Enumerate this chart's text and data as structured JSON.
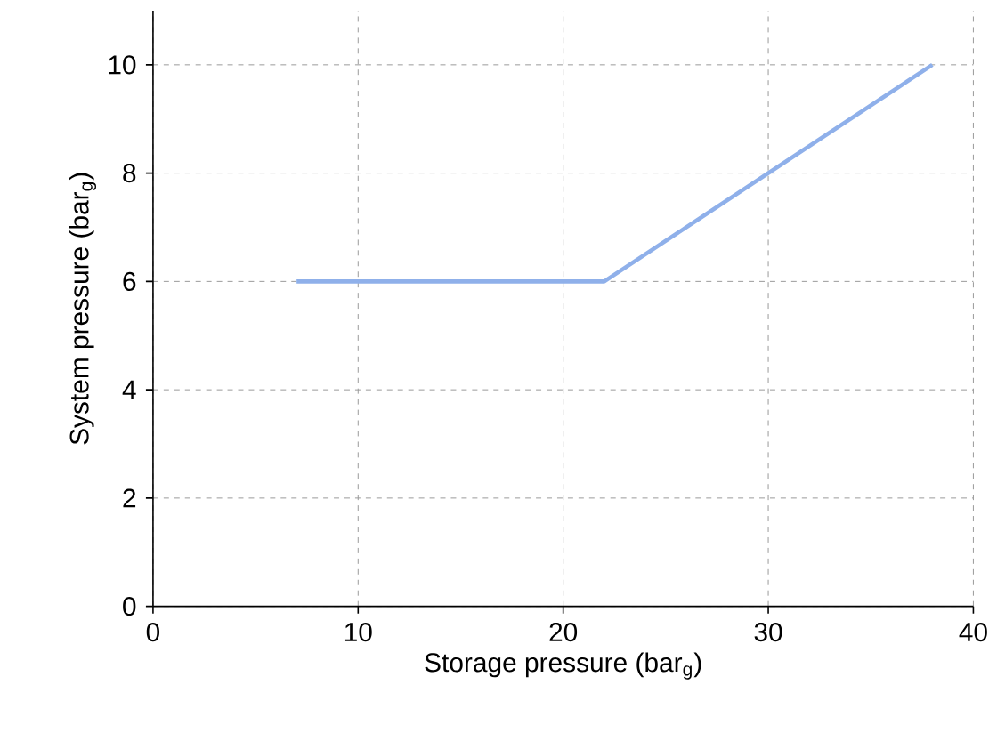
{
  "chart_data": {
    "type": "line",
    "xlabel": "Storage pressure (bar$_{g}$)",
    "ylabel": "System pressure (bar$_{g}$)",
    "x": [
      7,
      22,
      38
    ],
    "series": [
      {
        "color": "#8fb0ea",
        "values": [
          6,
          6,
          10
        ]
      }
    ],
    "xlim": [
      0,
      40
    ],
    "ylim": [
      0,
      11
    ],
    "xticks": [
      0,
      10,
      20,
      30,
      40
    ],
    "yticks": [
      0,
      2,
      4,
      6,
      8,
      10
    ],
    "grid": true,
    "marker": "none",
    "line_style": "solid"
  }
}
